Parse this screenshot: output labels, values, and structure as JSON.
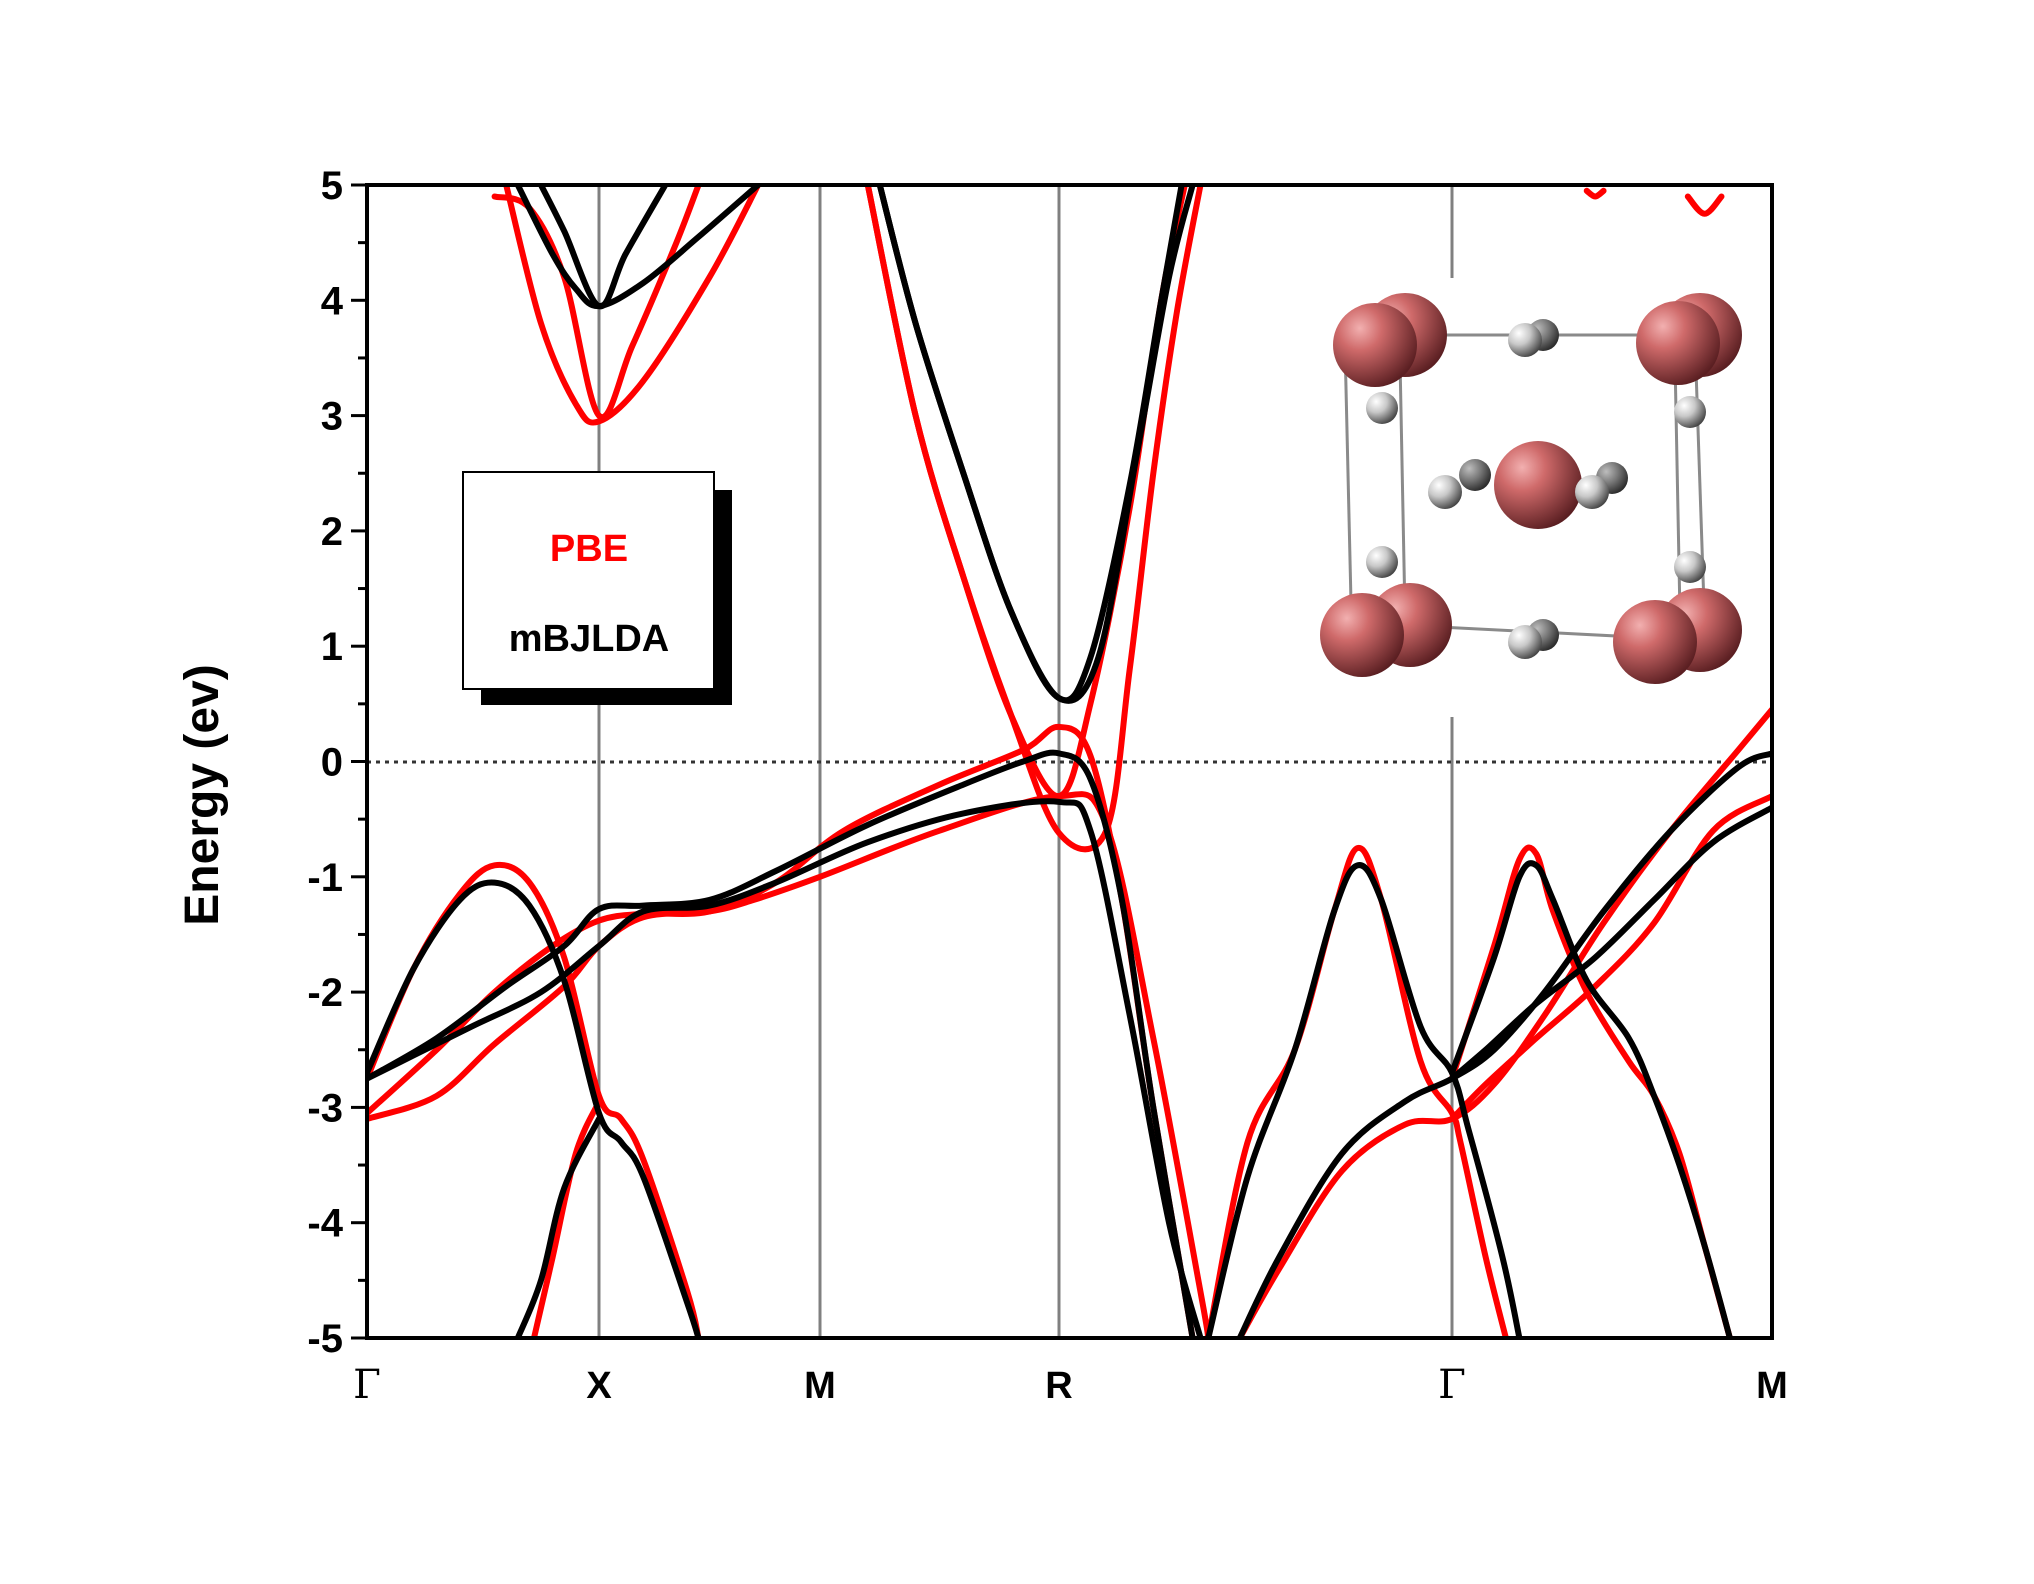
{
  "chart_data": {
    "type": "line",
    "ylabel": "Energy (ev)",
    "ylim": [
      -5,
      5
    ],
    "yticks": [
      "5",
      "4",
      "3",
      "2",
      "1",
      "0",
      "-1",
      "-2",
      "-3",
      "-4",
      "-5"
    ],
    "kpath": [
      "Γ",
      "X",
      "M",
      "R",
      "Γ",
      "M"
    ],
    "fermi_level": 0,
    "grid": false,
    "legend": {
      "position": "left",
      "entries": [
        "PBE",
        "mBJLDA"
      ]
    },
    "colors": {
      "PBE": "#ff0000",
      "mBJLDA": "#000000"
    },
    "series": [
      {
        "name": "PBE",
        "bands": [
          [
            [
              0,
              -3.1
            ],
            [
              0.3,
              -2.9
            ],
            [
              0.55,
              -2.45
            ],
            [
              0.85,
              -1.95
            ],
            [
              1.0,
              -1.6
            ],
            [
              1.2,
              -1.35
            ],
            [
              1.5,
              -1.3
            ],
            [
              1.7,
              -1.2
            ],
            [
              2.0,
              -1.0
            ],
            [
              2.5,
              -0.6
            ],
            [
              3.0,
              -0.3
            ],
            [
              3.3,
              -0.55
            ],
            [
              3.6,
              -2.4
            ],
            [
              3.9,
              -4.6
            ],
            [
              3.95,
              -5.0
            ]
          ],
          [
            [
              0,
              -3.05
            ],
            [
              0.3,
              -2.5
            ],
            [
              0.55,
              -2.0
            ],
            [
              0.8,
              -1.6
            ],
            [
              1.0,
              -1.38
            ],
            [
              1.2,
              -1.32
            ],
            [
              1.5,
              -1.3
            ],
            [
              1.8,
              -1.05
            ],
            [
              2.1,
              -0.6
            ],
            [
              2.5,
              -0.2
            ],
            [
              2.85,
              0.1
            ],
            [
              3.0,
              0.3
            ],
            [
              3.2,
              0.05
            ],
            [
              3.4,
              -1.2
            ],
            [
              3.6,
              -3.0
            ],
            [
              3.85,
              -5.0
            ]
          ],
          [
            [
              0,
              -2.75
            ],
            [
              0.2,
              -1.8
            ],
            [
              0.4,
              -1.15
            ],
            [
              0.55,
              -0.9
            ],
            [
              0.7,
              -1.05
            ],
            [
              0.85,
              -1.7
            ],
            [
              1.0,
              -2.9
            ],
            [
              1.1,
              -3.1
            ],
            [
              1.2,
              -3.45
            ],
            [
              1.4,
              -4.6
            ],
            [
              1.45,
              -5.0
            ]
          ],
          [
            [
              1.0,
              -2.95
            ],
            [
              0.9,
              -3.4
            ],
            [
              0.8,
              -4.3
            ],
            [
              0.72,
              -5.0
            ]
          ],
          [
            [
              0.6,
              5.0
            ],
            [
              0.75,
              3.8
            ],
            [
              0.9,
              3.1
            ],
            [
              1.0,
              2.95
            ],
            [
              1.2,
              3.3
            ],
            [
              1.5,
              4.2
            ],
            [
              1.72,
              5.0
            ]
          ],
          [
            [
              0.55,
              4.9
            ],
            [
              0.7,
              4.8
            ],
            [
              0.85,
              4.2
            ],
            [
              1.0,
              3.0
            ],
            [
              1.15,
              3.6
            ],
            [
              1.35,
              4.5
            ],
            [
              1.45,
              5.0
            ]
          ],
          [
            [
              2.2,
              5.0
            ],
            [
              2.4,
              3.0
            ],
            [
              2.6,
              1.6
            ],
            [
              2.8,
              0.4
            ],
            [
              3.0,
              -0.3
            ],
            [
              3.2,
              0.5
            ],
            [
              3.45,
              2.2
            ],
            [
              3.65,
              4.0
            ],
            [
              3.8,
              5.0
            ]
          ],
          [
            [
              2.2,
              5.0
            ],
            [
              2.4,
              3.0
            ],
            [
              2.6,
              1.6
            ],
            [
              2.8,
              0.4
            ],
            [
              3.0,
              -0.62
            ],
            [
              3.3,
              -0.6
            ],
            [
              3.45,
              0.8
            ],
            [
              3.6,
              2.5
            ],
            [
              3.75,
              3.9
            ],
            [
              3.9,
              5.0
            ]
          ],
          [
            [
              3.95,
              -5.0
            ],
            [
              4.2,
              -3.3
            ],
            [
              4.5,
              -2.5
            ],
            [
              4.75,
              -1.3
            ],
            [
              4.9,
              -0.75
            ],
            [
              5.05,
              -1.2
            ],
            [
              5.3,
              -2.6
            ],
            [
              5.5,
              -3.05
            ],
            [
              5.55,
              -3.3
            ],
            [
              5.7,
              -4.3
            ],
            [
              5.82,
              -5.0
            ]
          ],
          [
            [
              4.15,
              -5.0
            ],
            [
              4.4,
              -4.4
            ],
            [
              4.8,
              -3.55
            ],
            [
              5.2,
              -3.15
            ],
            [
              5.5,
              -3.1
            ],
            [
              5.75,
              -2.8
            ],
            [
              6.05,
              -2.2
            ],
            [
              6.4,
              -1.4
            ],
            [
              6.8,
              -0.6
            ],
            [
              7.2,
              0.1
            ],
            [
              7.4,
              0.45
            ]
          ],
          [
            [
              5.5,
              -2.75
            ],
            [
              5.75,
              -1.6
            ],
            [
              5.9,
              -0.85
            ],
            [
              6.0,
              -0.8
            ],
            [
              6.1,
              -1.3
            ],
            [
              6.3,
              -2.0
            ],
            [
              6.55,
              -2.6
            ],
            [
              6.7,
              -2.9
            ],
            [
              6.85,
              -3.4
            ],
            [
              7.0,
              -4.2
            ],
            [
              7.15,
              -5.0
            ]
          ],
          [
            [
              5.5,
              -3.1
            ],
            [
              5.7,
              -2.8
            ],
            [
              6.0,
              -2.4
            ],
            [
              6.35,
              -1.95
            ],
            [
              6.7,
              -1.4
            ],
            [
              7.05,
              -0.6
            ],
            [
              7.4,
              -0.3
            ]
          ],
          [
            [
              6.9,
              4.9
            ],
            [
              7.0,
              4.75
            ],
            [
              7.1,
              4.9
            ]
          ],
          [
            [
              6.3,
              4.95
            ],
            [
              6.35,
              4.9
            ],
            [
              6.4,
              4.95
            ]
          ]
        ]
      },
      {
        "name": "mBJLDA",
        "bands": [
          [
            [
              0,
              -2.75
            ],
            [
              0.2,
              -2.55
            ],
            [
              0.45,
              -2.3
            ],
            [
              0.75,
              -2.0
            ],
            [
              1.0,
              -1.6
            ],
            [
              1.2,
              -1.3
            ],
            [
              1.5,
              -1.25
            ],
            [
              1.8,
              -1.05
            ],
            [
              2.2,
              -0.7
            ],
            [
              2.6,
              -0.45
            ],
            [
              3.0,
              -0.35
            ],
            [
              3.2,
              -0.6
            ],
            [
              3.45,
              -2.2
            ],
            [
              3.7,
              -4.0
            ],
            [
              3.9,
              -5.0
            ]
          ],
          [
            [
              0,
              -2.75
            ],
            [
              0.3,
              -2.4
            ],
            [
              0.6,
              -1.95
            ],
            [
              0.85,
              -1.6
            ],
            [
              1.0,
              -1.28
            ],
            [
              1.2,
              -1.25
            ],
            [
              1.5,
              -1.2
            ],
            [
              1.8,
              -0.95
            ],
            [
              2.2,
              -0.55
            ],
            [
              2.6,
              -0.2
            ],
            [
              2.85,
              0.0
            ],
            [
              3.0,
              0.07
            ],
            [
              3.2,
              -0.15
            ],
            [
              3.4,
              -1.2
            ],
            [
              3.6,
              -3.0
            ],
            [
              3.85,
              -5.0
            ]
          ],
          [
            [
              0,
              -2.7
            ],
            [
              0.2,
              -1.8
            ],
            [
              0.4,
              -1.2
            ],
            [
              0.55,
              -1.05
            ],
            [
              0.7,
              -1.25
            ],
            [
              0.85,
              -1.9
            ],
            [
              1.0,
              -3.05
            ],
            [
              1.1,
              -3.3
            ],
            [
              1.2,
              -3.6
            ],
            [
              1.4,
              -4.7
            ],
            [
              1.45,
              -5.0
            ]
          ],
          [
            [
              1.0,
              -3.1
            ],
            [
              0.85,
              -3.7
            ],
            [
              0.75,
              -4.5
            ],
            [
              0.65,
              -5.0
            ]
          ],
          [
            [
              0.65,
              5.0
            ],
            [
              0.8,
              4.4
            ],
            [
              0.9,
              4.1
            ],
            [
              1.0,
              3.95
            ],
            [
              1.2,
              4.15
            ],
            [
              1.45,
              4.55
            ],
            [
              1.72,
              5.0
            ]
          ],
          [
            [
              0.75,
              5.0
            ],
            [
              0.85,
              4.6
            ],
            [
              1.0,
              3.95
            ],
            [
              1.12,
              4.4
            ],
            [
              1.3,
              5.0
            ]
          ],
          [
            [
              2.25,
              5.0
            ],
            [
              2.4,
              3.8
            ],
            [
              2.6,
              2.5
            ],
            [
              2.8,
              1.3
            ],
            [
              3.0,
              0.55
            ],
            [
              3.2,
              0.9
            ],
            [
              3.45,
              2.4
            ],
            [
              3.65,
              4.0
            ],
            [
              3.78,
              5.0
            ]
          ],
          [
            [
              2.25,
              5.0
            ],
            [
              2.4,
              3.8
            ],
            [
              2.6,
              2.5
            ],
            [
              2.8,
              1.3
            ],
            [
              3.0,
              0.55
            ],
            [
              3.25,
              0.9
            ],
            [
              3.5,
              2.7
            ],
            [
              3.7,
              4.2
            ],
            [
              3.85,
              5.0
            ]
          ],
          [
            [
              3.95,
              -5.0
            ],
            [
              4.2,
              -3.6
            ],
            [
              4.5,
              -2.5
            ],
            [
              4.75,
              -1.3
            ],
            [
              4.9,
              -0.9
            ],
            [
              5.05,
              -1.2
            ],
            [
              5.3,
              -2.3
            ],
            [
              5.5,
              -2.7
            ],
            [
              5.6,
              -3.2
            ],
            [
              5.8,
              -4.3
            ],
            [
              5.9,
              -5.0
            ]
          ],
          [
            [
              4.15,
              -5.0
            ],
            [
              4.4,
              -4.3
            ],
            [
              4.8,
              -3.4
            ],
            [
              5.2,
              -2.95
            ],
            [
              5.5,
              -2.75
            ],
            [
              5.75,
              -2.5
            ],
            [
              6.05,
              -2.0
            ],
            [
              6.4,
              -1.3
            ],
            [
              6.8,
              -0.6
            ],
            [
              7.2,
              -0.05
            ],
            [
              7.4,
              0.07
            ]
          ],
          [
            [
              5.5,
              -2.7
            ],
            [
              5.75,
              -1.7
            ],
            [
              5.9,
              -1.0
            ],
            [
              6.0,
              -0.9
            ],
            [
              6.1,
              -1.2
            ],
            [
              6.3,
              -1.9
            ],
            [
              6.55,
              -2.4
            ],
            [
              6.7,
              -2.9
            ],
            [
              6.85,
              -3.5
            ],
            [
              7.0,
              -4.2
            ],
            [
              7.15,
              -5.0
            ]
          ],
          [
            [
              5.5,
              -2.75
            ],
            [
              5.7,
              -2.5
            ],
            [
              6.0,
              -2.1
            ],
            [
              6.35,
              -1.7
            ],
            [
              6.7,
              -1.2
            ],
            [
              7.05,
              -0.7
            ],
            [
              7.4,
              -0.4
            ]
          ]
        ]
      }
    ]
  },
  "legend_labels": {
    "pbe": "PBE",
    "mbj": "mBJLDA"
  }
}
